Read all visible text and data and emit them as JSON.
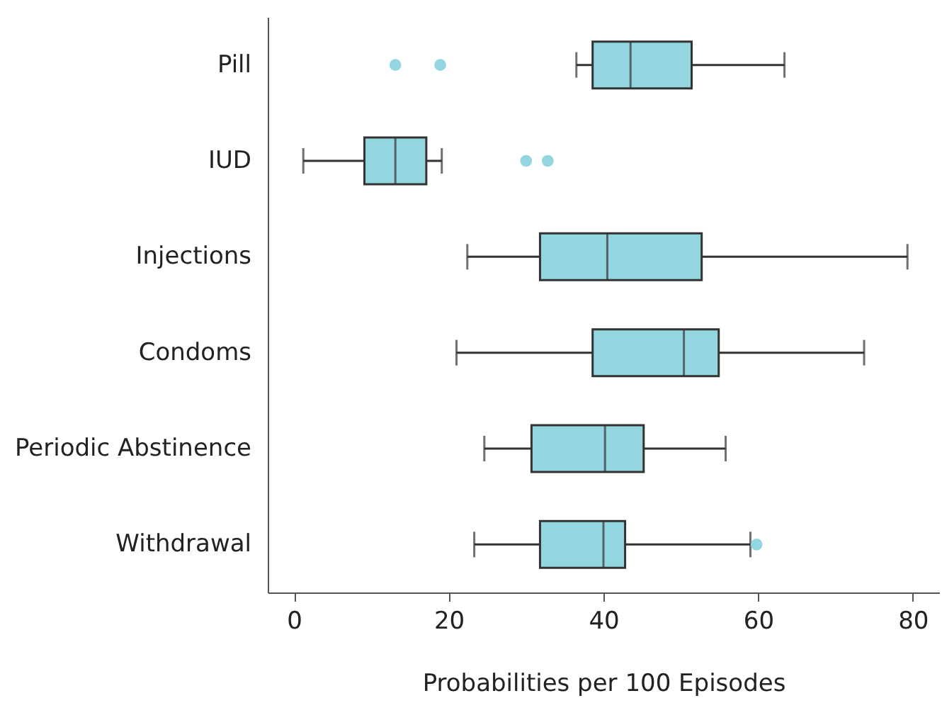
{
  "chart_data": {
    "type": "box",
    "orientation": "horizontal",
    "xlabel": "Probabilities per 100 Episodes",
    "categories": [
      "Pill",
      "IUD",
      "Injections",
      "Condoms",
      "Periodic Abstinence",
      "Withdrawal"
    ],
    "xlim": [
      -3.4,
      83.4
    ],
    "xticks": [
      0,
      20,
      40,
      60,
      80
    ],
    "series": [
      {
        "color": "#93d6e0",
        "boxes": [
          {
            "low": 36.5,
            "q1": 38.6,
            "median": 43.5,
            "q3": 51.4,
            "high": 63.4,
            "outliers": [
              13.1,
              18.9
            ]
          },
          {
            "low": 1.2,
            "q1": 9.1,
            "median": 13.1,
            "q3": 17.1,
            "high": 19.1,
            "outliers": [
              30.0,
              32.8
            ]
          },
          {
            "low": 22.4,
            "q1": 31.8,
            "median": 40.5,
            "q3": 52.7,
            "high": 79.3
          },
          {
            "low": 21.0,
            "q1": 38.6,
            "median": 50.4,
            "q3": 54.9,
            "high": 73.7
          },
          {
            "low": 24.6,
            "q1": 30.7,
            "median": 40.2,
            "q3": 45.2,
            "high": 55.8
          },
          {
            "low": 23.3,
            "q1": 31.8,
            "median": 40.0,
            "q3": 42.8,
            "high": 59.0,
            "outliers": [
              59.8
            ]
          }
        ]
      }
    ]
  }
}
